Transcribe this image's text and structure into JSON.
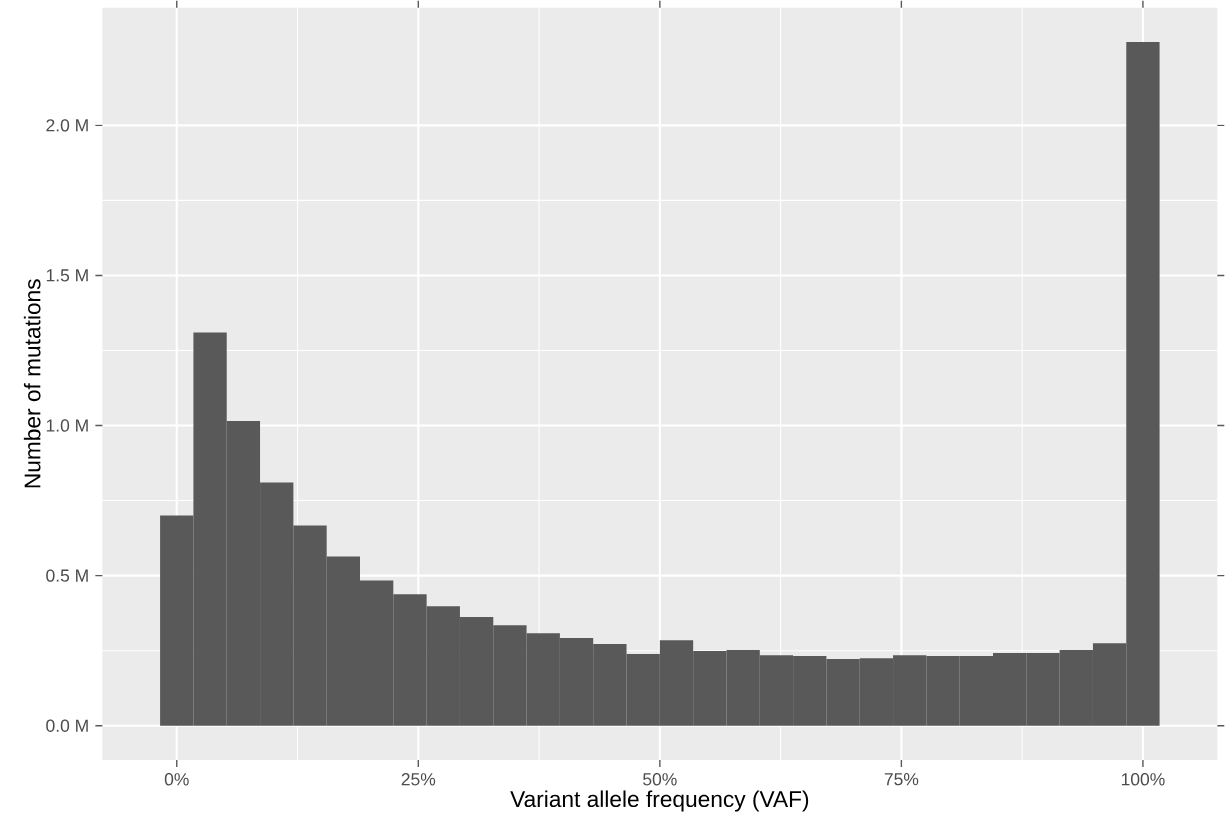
{
  "chart_data": {
    "type": "histogram",
    "xlabel": "Variant allele frequency (VAF)",
    "ylabel": "Number of mutations",
    "color": "#595959",
    "bins": [
      -1.724,
      1.724,
      5.172,
      8.621,
      12.069,
      15.517,
      18.966,
      22.414,
      25.862,
      29.31,
      32.759,
      36.207,
      39.655,
      43.103,
      46.552,
      50.0,
      53.448,
      56.897,
      60.345,
      63.793,
      67.241,
      70.69,
      74.138,
      77.586,
      81.034,
      84.483,
      87.931,
      91.379,
      94.828,
      98.276,
      101.724
    ],
    "values": [
      0.7,
      1.31,
      1.015,
      0.81,
      0.667,
      0.564,
      0.484,
      0.438,
      0.398,
      0.362,
      0.335,
      0.308,
      0.292,
      0.272,
      0.239,
      0.285,
      0.249,
      0.252,
      0.235,
      0.232,
      0.222,
      0.225,
      0.235,
      0.232,
      0.232,
      0.242,
      0.242,
      0.252,
      0.275,
      2.278
    ],
    "xlim": [
      -7.7,
      107.7
    ],
    "ylim": [
      -0.114,
      2.392
    ],
    "xticks": [
      {
        "value": 0,
        "label": "0%"
      },
      {
        "value": 25,
        "label": "25%"
      },
      {
        "value": 50,
        "label": "50%"
      },
      {
        "value": 75,
        "label": "75%"
      },
      {
        "value": 100,
        "label": "100%"
      }
    ],
    "yticks": [
      {
        "value": 0,
        "label": "0.0 M"
      },
      {
        "value": 0.5,
        "label": "0.5 M"
      },
      {
        "value": 1,
        "label": "1.0 M"
      },
      {
        "value": 1.5,
        "label": "1.5 M"
      },
      {
        "value": 2,
        "label": "2.0 M"
      }
    ],
    "grid": true
  }
}
